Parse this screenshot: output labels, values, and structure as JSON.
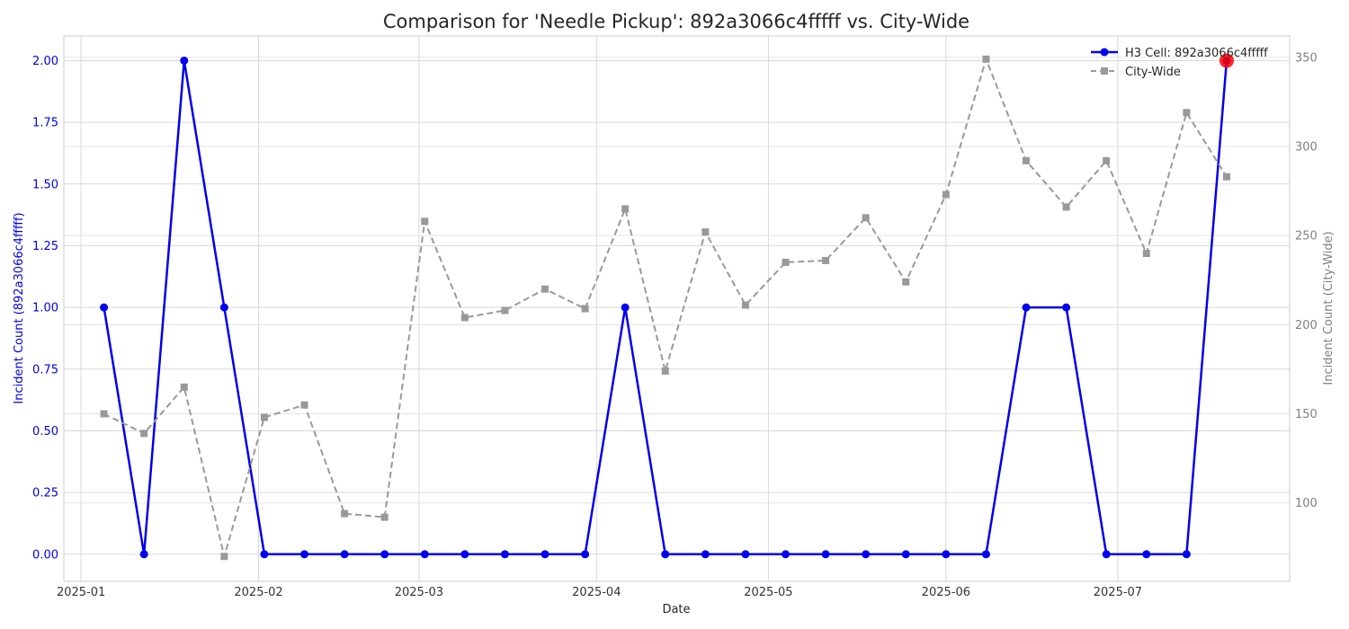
{
  "chart_data": {
    "type": "line",
    "title": "Comparison for 'Needle Pickup': 892a3066c4fffff vs. City-Wide",
    "xlabel": "Date",
    "ylabel_left": "Incident Count (892a3066c4fffff)",
    "ylabel_right": "Incident Count (City-Wide)",
    "x": [
      "2025-01-05",
      "2025-01-12",
      "2025-01-19",
      "2025-01-26",
      "2025-02-02",
      "2025-02-09",
      "2025-02-16",
      "2025-02-23",
      "2025-03-02",
      "2025-03-09",
      "2025-03-16",
      "2025-03-23",
      "2025-03-30",
      "2025-04-06",
      "2025-04-13",
      "2025-04-20",
      "2025-04-27",
      "2025-05-04",
      "2025-05-11",
      "2025-05-18",
      "2025-05-25",
      "2025-06-01",
      "2025-06-08",
      "2025-06-15",
      "2025-06-22",
      "2025-06-29",
      "2025-07-06",
      "2025-07-13",
      "2025-07-20"
    ],
    "xticks": [
      "2025-01",
      "2025-02",
      "2025-03",
      "2025-04",
      "2025-05",
      "2025-06",
      "2025-07"
    ],
    "xtick_dates": [
      "2025-01-01",
      "2025-02-01",
      "2025-03-01",
      "2025-04-01",
      "2025-05-01",
      "2025-06-01",
      "2025-07-01"
    ],
    "xlim": [
      "2024-12-29",
      "2025-07-31"
    ],
    "ylim_left": [
      -0.11,
      2.1
    ],
    "yticks_left": [
      "0.00",
      "0.25",
      "0.50",
      "0.75",
      "1.00",
      "1.25",
      "1.50",
      "1.75",
      "2.00"
    ],
    "ylim_right": [
      56,
      362
    ],
    "yticks_right": [
      "100",
      "150",
      "200",
      "250",
      "300",
      "350"
    ],
    "grid": true,
    "legend_position": "top-right",
    "series": [
      {
        "name": "H3 Cell: 892a3066c4fffff",
        "axis": "left",
        "color": "#0000ee",
        "style": "solid",
        "marker": "circle",
        "values": [
          1,
          0,
          2,
          1,
          0,
          0,
          0,
          0,
          0,
          0,
          0,
          0,
          0,
          1,
          0,
          0,
          0,
          0,
          0,
          0,
          0,
          0,
          0,
          1,
          1,
          0,
          0,
          0,
          2
        ]
      },
      {
        "name": "City-Wide",
        "axis": "right",
        "color": "#999999",
        "style": "dashed",
        "marker": "square",
        "values": [
          150,
          139,
          165,
          70,
          148,
          155,
          94,
          92,
          258,
          204,
          208,
          220,
          209,
          265,
          174,
          252,
          211,
          235,
          236,
          260,
          224,
          273,
          349,
          292,
          266,
          292,
          240,
          319,
          283
        ]
      }
    ],
    "highlight": {
      "series": 0,
      "index": 28,
      "color": "#ff0000"
    }
  }
}
